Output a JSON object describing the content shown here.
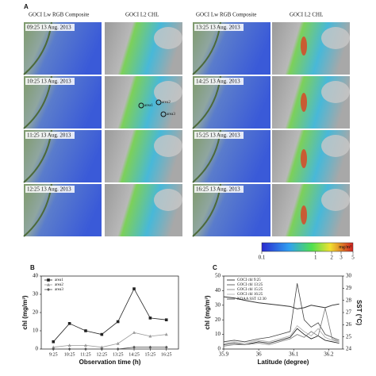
{
  "panel_a": {
    "label": "A",
    "headers": [
      "GOCI Lw RGB Composite",
      "GOCI L2 CHL",
      "GOCI Lw RGB Composite",
      "GOCI L2 CHL"
    ],
    "times": [
      "09:25 13 Aug. 2013",
      "10:25 13 Aug. 2013",
      "11:25 13 Aug. 2013",
      "12:25 13 Aug. 2013",
      "13:25 13 Aug. 2013",
      "14:25 13 Aug. 2013",
      "15:25 13 Aug. 2013",
      "16:25 13 Aug. 2013"
    ],
    "areas": [
      "area1",
      "area2",
      "area3"
    ],
    "colorbar": {
      "scale": "log",
      "lim": [
        0.1,
        5
      ],
      "ticks": [
        0.1,
        1,
        2,
        3,
        5
      ],
      "unit": "mg/m³"
    }
  },
  "chart_data": [
    {
      "type": "line",
      "label": "B",
      "xlabel": "Observation time (h)",
      "ylabel": "chl (mg/m³)",
      "categories": [
        "9:25",
        "10:25",
        "11:25",
        "12:25",
        "13:25",
        "14:25",
        "15:25",
        "16:25"
      ],
      "ylim": [
        0,
        40
      ],
      "yticks": [
        0,
        10,
        20,
        30,
        40
      ],
      "legend": "top-left",
      "series": [
        {
          "name": "area1",
          "color": "#222222",
          "marker": "square",
          "values": [
            4,
            14,
            10,
            8,
            15,
            33,
            17,
            16
          ]
        },
        {
          "name": "area2",
          "color": "#9a9a9a",
          "marker": "triangle",
          "values": [
            1,
            2,
            2,
            1,
            3,
            9,
            7,
            8
          ]
        },
        {
          "name": "area3",
          "color": "#555555",
          "marker": "diamond",
          "values": [
            0,
            0,
            0,
            0,
            0,
            1,
            1,
            1
          ]
        }
      ]
    },
    {
      "type": "line",
      "label": "C",
      "xlabel": "Latitude (degree)",
      "ylabel": "chl (mg/m³)",
      "y2label": "SST (°C)",
      "x": [
        35.9,
        35.93,
        35.96,
        36.0,
        36.03,
        36.06,
        36.09,
        36.11,
        36.13,
        36.15,
        36.17,
        36.19,
        36.21,
        36.23
      ],
      "xlim": [
        35.9,
        36.24
      ],
      "xticks": [
        35.9,
        36,
        36.1,
        36.2
      ],
      "ylim": [
        0,
        50
      ],
      "yticks": [
        0,
        10,
        20,
        30,
        40,
        50
      ],
      "y2lim": [
        24,
        30
      ],
      "y2ticks": [
        24,
        25,
        26,
        27,
        28,
        29,
        30
      ],
      "legend": "top-left",
      "series": [
        {
          "name": "GOCI chl 9:25",
          "color": "#111111",
          "values": [
            3,
            4,
            3,
            5,
            4,
            6,
            8,
            14,
            10,
            7,
            9,
            6,
            5,
            4
          ]
        },
        {
          "name": "GOCI chl 13:25",
          "color": "#444444",
          "values": [
            5,
            6,
            5,
            7,
            8,
            10,
            12,
            45,
            20,
            15,
            18,
            10,
            8,
            6
          ]
        },
        {
          "name": "GOCI chl 15:25",
          "color": "#777777",
          "values": [
            2,
            3,
            3,
            4,
            3,
            5,
            7,
            10,
            8,
            12,
            9,
            28,
            7,
            5
          ]
        },
        {
          "name": "GOCI chl 16:25",
          "color": "#aaaaaa",
          "values": [
            4,
            5,
            4,
            6,
            5,
            7,
            9,
            16,
            12,
            9,
            14,
            8,
            6,
            5
          ]
        },
        {
          "name": "NOAA SST 12:30",
          "color": "#333333",
          "axis": "y2",
          "values": [
            28.3,
            28.2,
            28.0,
            27.8,
            27.7,
            27.6,
            27.5,
            27.3,
            27.4,
            27.6,
            27.5,
            27.4,
            27.6,
            27.7
          ]
        }
      ]
    }
  ]
}
